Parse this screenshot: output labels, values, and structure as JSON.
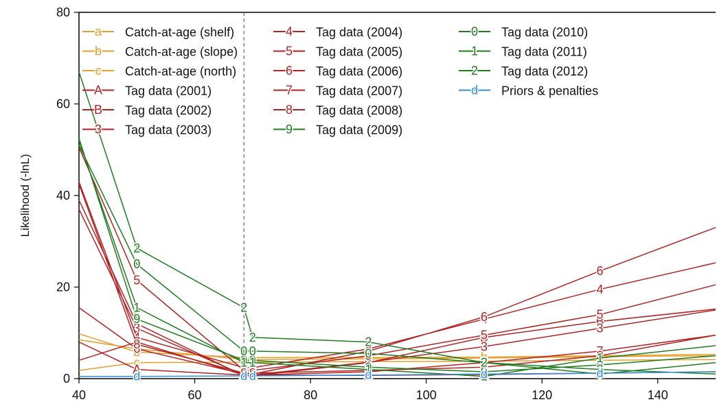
{
  "chart_data": {
    "type": "line",
    "title": "",
    "xlabel": "",
    "ylabel": "Likelihood (-lnL)",
    "xlim": [
      40,
      150
    ],
    "ylim": [
      0,
      80
    ],
    "xticks": [
      40,
      60,
      80,
      100,
      120,
      140
    ],
    "yticks": [
      0,
      20,
      40,
      60,
      80
    ],
    "reference_line_x": 68.5,
    "legend_position": "top-right",
    "x": [
      40,
      50,
      68.5,
      70,
      90,
      110,
      130,
      150
    ],
    "series": [
      {
        "name": "Catch-at-age (shelf)",
        "marker": "a",
        "color": "#e69f2c",
        "values": [
          8.5,
          6.5,
          4.2,
          4.2,
          4.3,
          4.5,
          4.8,
          5.0
        ]
      },
      {
        "name": "Catch-at-age (slope)",
        "marker": "b",
        "color": "#e69f2c",
        "values": [
          9.8,
          5.8,
          4.6,
          4.6,
          4.6,
          4.7,
          5.0,
          5.3
        ]
      },
      {
        "name": "Catch-at-age (north)",
        "marker": "c",
        "color": "#e69f2c",
        "values": [
          1.8,
          3.5,
          3.6,
          3.6,
          3.7,
          3.8,
          4.0,
          4.2
        ]
      },
      {
        "name": "Tag data (2001)",
        "marker": "A",
        "color": "#b22222",
        "values": [
          8.0,
          2.0,
          0.8,
          0.8,
          0.7,
          0.9,
          1.2,
          1.5
        ]
      },
      {
        "name": "Tag data (2002)",
        "marker": "B",
        "color": "#b22222",
        "values": [
          39.0,
          12.0,
          0.6,
          0.6,
          3.5,
          9.0,
          12.5,
          15.2
        ]
      },
      {
        "name": "Tag data (2003)",
        "marker": "3",
        "color": "#b22222",
        "values": [
          37.0,
          11.0,
          0.8,
          0.8,
          3.6,
          7.0,
          11.0,
          15.0
        ]
      },
      {
        "name": "Tag data (2004)",
        "marker": "4",
        "color": "#b22222",
        "values": [
          43.0,
          9.0,
          2.4,
          2.4,
          6.5,
          13.0,
          19.5,
          25.3
        ]
      },
      {
        "name": "Tag data (2005)",
        "marker": "5",
        "color": "#b22222",
        "values": [
          50.5,
          21.5,
          1.8,
          1.8,
          5.0,
          9.5,
          14.0,
          20.5
        ]
      },
      {
        "name": "Tag data (2006)",
        "marker": "6",
        "color": "#b22222",
        "values": [
          15.5,
          6.5,
          1.0,
          1.0,
          6.0,
          13.5,
          23.5,
          33.0
        ]
      },
      {
        "name": "Tag data (2007)",
        "marker": "7",
        "color": "#b22222",
        "values": [
          4.0,
          8.0,
          0.8,
          0.8,
          1.5,
          3.5,
          6.0,
          9.5
        ]
      },
      {
        "name": "Tag data (2008)",
        "marker": "8",
        "color": "#b22222",
        "values": [
          42.5,
          7.5,
          1.2,
          1.2,
          1.8,
          2.5,
          5.0,
          9.5
        ]
      },
      {
        "name": "Tag data (2009)",
        "marker": "9",
        "color": "#1e7b1e",
        "values": [
          52.5,
          13.0,
          4.0,
          4.0,
          2.5,
          1.5,
          3.0,
          5.0
        ]
      },
      {
        "name": "Tag data (2010)",
        "marker": "0",
        "color": "#1e7b1e",
        "values": [
          51.0,
          25.0,
          6.0,
          6.0,
          5.5,
          3.5,
          1.0,
          3.5
        ]
      },
      {
        "name": "Tag data (2011)",
        "marker": "1",
        "color": "#1e7b1e",
        "values": [
          52.0,
          15.5,
          3.5,
          3.5,
          2.0,
          0.5,
          4.5,
          7.2
        ]
      },
      {
        "name": "Tag data (2012)",
        "marker": "2",
        "color": "#1e7b1e",
        "values": [
          67.0,
          28.5,
          15.5,
          9.0,
          8.0,
          3.5,
          2.0,
          1.0
        ]
      },
      {
        "name": "Priors & penalties",
        "marker": "d",
        "color": "#2f8fdc",
        "values": [
          0.5,
          0.5,
          0.6,
          0.6,
          0.8,
          1.0,
          1.2,
          1.5
        ]
      }
    ]
  }
}
